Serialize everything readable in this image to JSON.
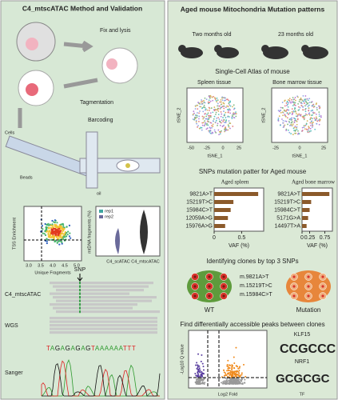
{
  "left": {
    "title": "C4_mtscATAC Method and Validation",
    "steps": {
      "fix": "Fix and lysis",
      "tagmentation": "Tagmentation",
      "barcoding": "Barcoding",
      "cells": "Cells",
      "beads": "Beads",
      "oil": "oil"
    },
    "qc": {
      "y_label": "TSS Enrichment",
      "x_label": "Unique Fragments",
      "xticks": [
        "3.0",
        "3.5",
        "4.0",
        "4.5",
        "5.0"
      ]
    },
    "violin": {
      "y_label": "mtDNA fragments (%)",
      "legend": [
        "rep1",
        "rep2"
      ],
      "groups": [
        "C4_scATAC",
        "C4_mtscATAC"
      ]
    },
    "browser": {
      "snp": "SNP",
      "tracks": [
        "C4_mtscATAC",
        "WGS",
        "Sanger"
      ],
      "sequence": "TAGAGAGAGTAAAAAATTT"
    }
  },
  "right": {
    "title": "Aged mouse Mitochondria  Mutation patterns",
    "ages": [
      "Two months old",
      "23 months old"
    ],
    "atlas": {
      "title": "Single-Cell Atlas of mouse",
      "panels": [
        "Spleen tissue",
        "Bone marrow tissue"
      ],
      "x_label": "tSNE_1",
      "y_label": "tSNE_2",
      "xticks": [
        [
          "-50",
          "-25",
          "0",
          "25"
        ],
        [
          "-25",
          "0",
          "25"
        ]
      ]
    },
    "snp_title": "SNPs mutation patter for Aged mouse",
    "clones": {
      "title": "Identifying clones by top 3 SNPs",
      "mutations": [
        "m.9821A>T",
        "m.15219T>C",
        "m.15984C>T"
      ],
      "groups": [
        "WT",
        "Mutation"
      ]
    },
    "peaks": {
      "title": "Find differentially accessible peaks between clones",
      "x_label": "Log2 Fold",
      "y_label": "-Log10 Q value",
      "motifs": [
        "KLF15",
        "NRF1"
      ],
      "motif_axis": "TF"
    }
  },
  "snp_charts": [
    {
      "title": "Aged spleen",
      "categories": [
        "9821A>T",
        "15219T>C",
        "15984C>T",
        "12059A>G",
        "15976A>G"
      ],
      "values": [
        0.8,
        0.35,
        0.3,
        0.25,
        0.2
      ],
      "color": "#8b5a2b",
      "xlim": [
        0,
        0.9
      ],
      "xticks": [
        0,
        0.5
      ],
      "x_label": "VAF (%)"
    },
    {
      "title": "Aged bone marrow",
      "categories": [
        "9821A>T",
        "15219T>C",
        "15984C>T",
        "5171G>A",
        "14497T>A"
      ],
      "values": [
        0.9,
        0.3,
        0.25,
        0.2,
        0.15
      ],
      "color": "#8b5a2b",
      "xlim": [
        0,
        1
      ],
      "xticks": [
        0,
        0.25,
        0.75
      ],
      "x_label": "VAF (%)"
    }
  ]
}
